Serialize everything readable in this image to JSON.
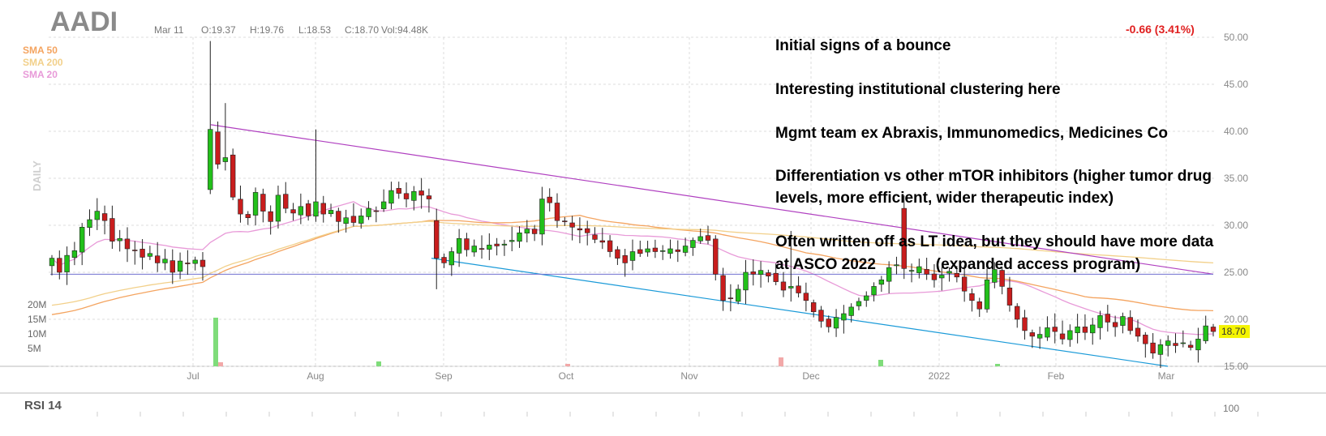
{
  "header": {
    "ticker": "AADI",
    "date": "Mar 11",
    "open": "O:19.37",
    "high": "H:19.76",
    "low": "L:18.53",
    "close": "C:18.70",
    "volume": "Vol:94.48K",
    "change": "-0.66 (3.41%)",
    "timeframe": "DAILY"
  },
  "legend": {
    "sma50": "SMA 50",
    "sma200": "SMA 200",
    "sma20": "SMA 20"
  },
  "notes": [
    "Initial signs of a bounce",
    "Interesting institutional clustering here",
    "Mgmt team ex Abraxis, Immunomedics, Medicines Co",
    "Differentiation vs other mTOR inhibitors (higher tumor drug",
    "levels, more efficient, wider therapeutic index)",
    "Often written off as LT idea, but they should have more data",
    "at ASCO 2022              (expanded access program)"
  ],
  "rsi": {
    "label": "RSI 14",
    "top_tick": "100"
  },
  "colors": {
    "up": "#22c01a",
    "down": "#c81d1d",
    "sma50": "#f4a460",
    "sma200": "#f2d08a",
    "sma20": "#e89ad8",
    "resistance": "#b040c0",
    "support": "#1a9ad8",
    "horizontal": "#7070d0",
    "last_price_bg": "#f4f400"
  },
  "chart_data": {
    "type": "candlestick",
    "title": "AADI",
    "y_ticks": [
      "50.00",
      "45.00",
      "40.00",
      "35.00",
      "30.00",
      "25.00",
      "20.00",
      "15.00"
    ],
    "ylim": [
      15,
      50
    ],
    "x_ticks": [
      "Jul",
      "Aug",
      "Sep",
      "Oct",
      "Nov",
      "Dec",
      "2022",
      "Feb",
      "Mar"
    ],
    "volume_ticks": [
      "20M",
      "15M",
      "10M",
      "5M"
    ],
    "last_price": "18.70",
    "closes": [
      26.5,
      25.0,
      26.8,
      27.3,
      29.8,
      30.6,
      31.5,
      30.5,
      28.3,
      28.6,
      27.5,
      27.3,
      26.6,
      27.0,
      26.0,
      26.4,
      25.0,
      26.2,
      25.9,
      26.3,
      25.6,
      40.2,
      36.5,
      37.2,
      33.0,
      31.2,
      30.8,
      33.5,
      31.5,
      30.4,
      33.2,
      31.8,
      31.3,
      32.0,
      31.0,
      32.5,
      31.2,
      31.6,
      30.4,
      30.8,
      30.3,
      31.0,
      31.8,
      31.5,
      32.5,
      33.7,
      33.4,
      32.8,
      33.6,
      33.2,
      32.8,
      26.5,
      26.0,
      27.2,
      28.6,
      27.4,
      27.8,
      27.5,
      27.9,
      27.8,
      28.0,
      28.4,
      29.2,
      29.6,
      29.1,
      32.8,
      32.4,
      30.5,
      30.4,
      29.8,
      29.5,
      29.2,
      28.5,
      28.2,
      27.2,
      26.5,
      26.0,
      27.2,
      27.0,
      27.5,
      27.2,
      27.3,
      27.5,
      27.2,
      27.8,
      28.4,
      28.8,
      28.4,
      24.8,
      22.0,
      22.2,
      23.2,
      25.0,
      24.8,
      25.2,
      24.6,
      24.0,
      23.1,
      23.5,
      22.8,
      22.0,
      20.8,
      19.8,
      19.2,
      20.2,
      20.6,
      21.3,
      21.9,
      22.5,
      23.5,
      24.2,
      25.5,
      25.8,
      25.4,
      25.2,
      25.6,
      24.8,
      24.2,
      24.7,
      25.1,
      24.5,
      23.0,
      22.0,
      21.1,
      24.2,
      25.3,
      23.5,
      21.5,
      20.0,
      18.8,
      18.2,
      18.4,
      19.1,
      18.7,
      17.9,
      18.8,
      19.2,
      18.6,
      19.4,
      20.4,
      19.7,
      19.2,
      20.3,
      18.8,
      18.2,
      17.4,
      16.4,
      17.3,
      17.7,
      17.2,
      17.5,
      17.0,
      17.9,
      19.3,
      18.7
    ],
    "annotations": [
      "Initial signs of a bounce",
      "Interesting institutional clustering here",
      "Mgmt team ex Abraxis, Immunomedics, Medicines Co",
      "Differentiation vs other mTOR inhibitors (higher tumor drug levels, more efficient, wider therapeutic index)",
      "Often written off as LT idea, but they should have more data at ASCO 2022 (expanded access program)"
    ],
    "trendlines": [
      {
        "name": "resistance",
        "from": 40.7,
        "to": 24.8
      },
      {
        "name": "support",
        "from": 26.5,
        "to": 15.0
      },
      {
        "name": "horizontal",
        "from": 24.8,
        "to": 24.8
      }
    ],
    "grid": true
  }
}
